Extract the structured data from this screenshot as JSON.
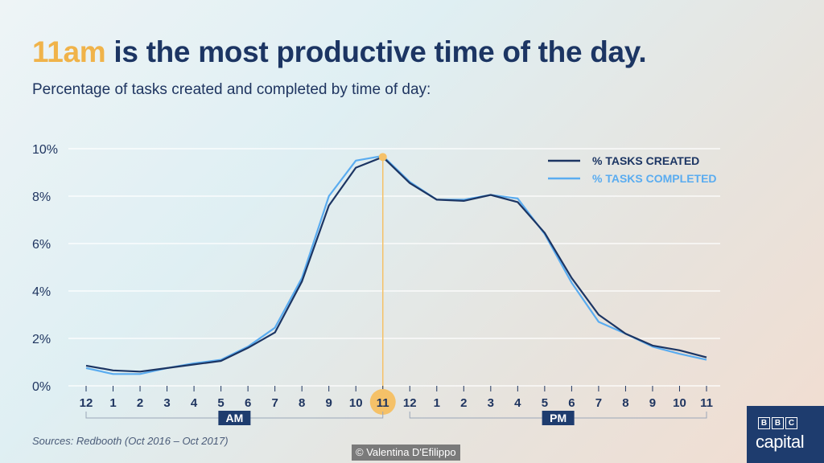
{
  "headline": {
    "accent": "11am",
    "rest": " is the most productive time of the day."
  },
  "subtitle": "Percentage of tasks created and completed by time of day:",
  "footer": {
    "source": "Sources: Redbooth (Oct 2016 – Oct 2017)",
    "credit": "© Valentina D'Efilippo"
  },
  "logo": {
    "letters": [
      "B",
      "B",
      "C"
    ],
    "word": "capital"
  },
  "colors": {
    "created": "#1c3563",
    "completed": "#5aacf0",
    "highlight": "#f5c168",
    "grid": "#ffffff",
    "text": "#1f3560",
    "period_box": "#1e3c6e"
  },
  "chart_data": {
    "type": "line",
    "x": [
      "12",
      "1",
      "2",
      "3",
      "4",
      "5",
      "6",
      "7",
      "8",
      "9",
      "10",
      "11",
      "12",
      "1",
      "2",
      "3",
      "4",
      "5",
      "6",
      "7",
      "8",
      "9",
      "10",
      "11"
    ],
    "ylim": [
      0,
      10
    ],
    "yticks": [
      "0%",
      "2%",
      "4%",
      "6%",
      "8%",
      "10%"
    ],
    "series": [
      {
        "name": "% TASKS CREATED",
        "values": [
          0.85,
          0.65,
          0.6,
          0.75,
          0.9,
          1.05,
          1.6,
          2.25,
          4.4,
          7.6,
          9.2,
          9.65,
          8.55,
          7.85,
          7.8,
          8.05,
          7.75,
          6.45,
          4.55,
          3.0,
          2.2,
          1.7,
          1.5,
          1.2
        ]
      },
      {
        "name": "% TASKS COMPLETED",
        "values": [
          0.75,
          0.5,
          0.5,
          0.75,
          0.95,
          1.1,
          1.65,
          2.45,
          4.55,
          8.0,
          9.5,
          9.7,
          8.6,
          7.85,
          7.85,
          8.05,
          7.9,
          6.4,
          4.35,
          2.7,
          2.2,
          1.65,
          1.35,
          1.1
        ]
      }
    ],
    "highlight_index": 11,
    "periods": [
      "AM",
      "PM"
    ],
    "grid": true,
    "legend": "top-right"
  }
}
